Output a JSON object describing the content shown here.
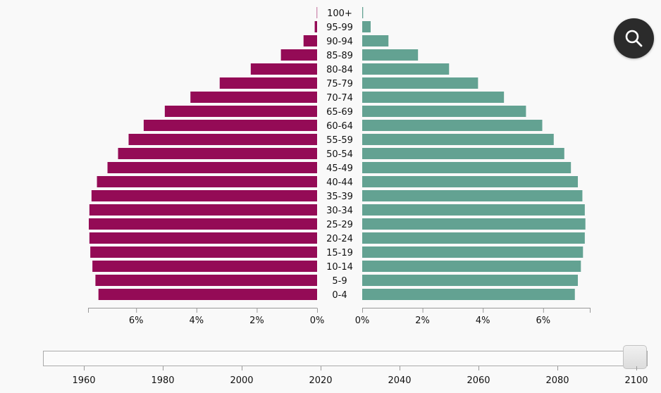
{
  "chart_data": {
    "type": "bar",
    "orientation": "horizontal",
    "layout": "population-pyramid",
    "categories": [
      "0-4",
      "5-9",
      "10-14",
      "15-19",
      "20-24",
      "25-29",
      "30-34",
      "35-39",
      "40-44",
      "45-49",
      "50-54",
      "55-59",
      "60-64",
      "65-69",
      "70-74",
      "75-79",
      "80-84",
      "85-89",
      "90-94",
      "95-99",
      "100+"
    ],
    "series": [
      {
        "color": "#940B56",
        "values": [
          7.25,
          7.35,
          7.45,
          7.52,
          7.55,
          7.57,
          7.55,
          7.48,
          7.3,
          6.95,
          6.6,
          6.25,
          5.75,
          5.05,
          4.2,
          3.23,
          2.2,
          1.2,
          0.45,
          0.08,
          0.01
        ]
      },
      {
        "color": "#63A292",
        "values": [
          7.05,
          7.15,
          7.25,
          7.32,
          7.38,
          7.4,
          7.38,
          7.3,
          7.15,
          6.92,
          6.7,
          6.35,
          5.97,
          5.43,
          4.7,
          3.84,
          2.88,
          1.85,
          0.87,
          0.28,
          0.03
        ]
      }
    ],
    "left_ticks": [
      "6%",
      "4%",
      "2%",
      "0%"
    ],
    "right_ticks": [
      "0%",
      "2%",
      "4%",
      "6%"
    ],
    "xlim": [
      0,
      7.6
    ]
  },
  "controls": {
    "search_icon": "search-icon",
    "timeline": {
      "ticks": [
        "1960",
        "1980",
        "2000",
        "2020",
        "2040",
        "2060",
        "2080",
        "2100"
      ],
      "range": [
        1950,
        2100
      ],
      "value": 2100
    }
  }
}
